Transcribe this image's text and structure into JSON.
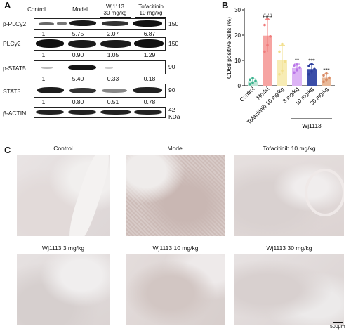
{
  "panels": {
    "A": "A",
    "B": "B",
    "C": "C"
  },
  "western": {
    "groups": [
      "Control",
      "Model",
      "Wj1113\n30 mg/kg",
      "Tofacitinib\n10 mg/kg"
    ],
    "group_lines": [
      [
        "Control"
      ],
      [
        "Model"
      ],
      [
        "Wj1113",
        "30 mg/kg"
      ],
      [
        "Tofacitinib",
        "10 mg/kg"
      ]
    ],
    "blots": [
      {
        "label": "p-PLCγ2",
        "kda": "150",
        "quant": [
          "1",
          "5.75",
          "2.07",
          "6.87"
        ]
      },
      {
        "label": "PLCγ2",
        "kda": "150",
        "quant": [
          "1",
          "0.90",
          "1.05",
          "1.29"
        ]
      },
      {
        "label": "p-STAT5",
        "kda": "90",
        "quant": [
          "1",
          "5.40",
          "0.33",
          "0.18"
        ]
      },
      {
        "label": "STAT5",
        "kda": "90",
        "quant": [
          "1",
          "0.80",
          "0.51",
          "0.78"
        ]
      },
      {
        "label": "β-ACTIN",
        "kda": "42",
        "quant": []
      }
    ],
    "kda_unit": "KDa"
  },
  "chart_data": {
    "type": "bar",
    "ylabel": "CD68 positive cells (%)",
    "ylim": [
      0,
      30
    ],
    "yticks": [
      0,
      10,
      20,
      30
    ],
    "categories": [
      "Control",
      "Model",
      "Tofacitinib 10 mg/kg",
      "3 mg/kg",
      "10 mg/kg",
      "30 mg/kg"
    ],
    "group_label": "Wj1113",
    "values": [
      1.8,
      19.8,
      10.2,
      7.0,
      6.6,
      3.2
    ],
    "errors": [
      0.9,
      6.5,
      5.8,
      1.6,
      1.9,
      1.5
    ],
    "significance": [
      "",
      "###",
      "",
      "**",
      "***",
      "***"
    ],
    "colors": [
      "#3cb38f",
      "#f07b7b",
      "#f2df8c",
      "#b975e8",
      "#2e3f9e",
      "#d98a64"
    ],
    "bar_colors": [
      "#bfe6d7",
      "#f6a4a2",
      "#f7ecb4",
      "#dcb3f5",
      "#3b4ea8",
      "#e9b999"
    ],
    "points": [
      [
        0.6,
        1.2,
        1.9,
        2.4,
        3.0
      ],
      [
        13.5,
        16.0,
        19.5,
        24.0,
        26.5
      ],
      [
        4.5,
        6.0,
        9.5,
        13.5,
        16.5
      ],
      [
        5.2,
        6.3,
        7.2,
        8.0,
        8.4
      ],
      [
        4.5,
        5.6,
        6.6,
        7.8,
        8.6
      ],
      [
        1.6,
        2.4,
        3.2,
        4.1,
        4.8
      ]
    ]
  },
  "histology": {
    "titles": [
      "Control",
      "Model",
      "Tofacitinib 10 mg/kg",
      "Wj1113 3 mg/kg",
      "Wj1113 10 mg/kg",
      "Wj1113 30 mg/kg"
    ],
    "scale_bar": "500μm"
  }
}
